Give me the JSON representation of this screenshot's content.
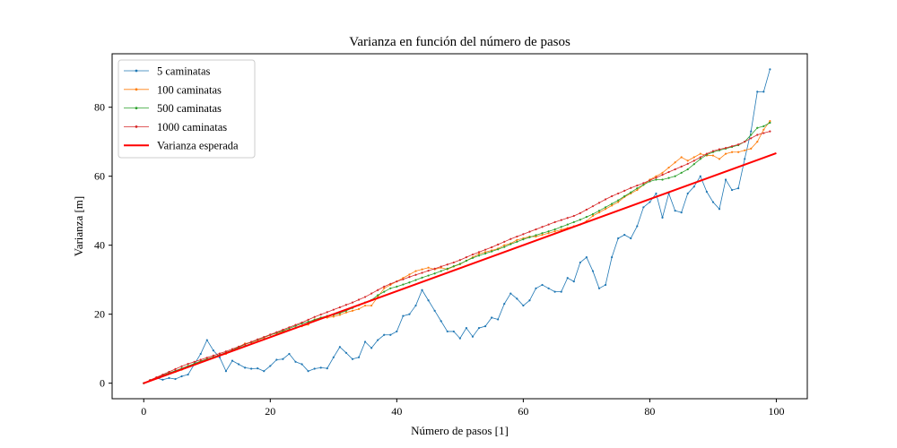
{
  "chart_data": {
    "type": "line",
    "title": "Varianza en función del número de pasos",
    "xlabel": "Número de pasos [1]",
    "ylabel": "Varianza [m]",
    "xlim": [
      -5,
      104.9
    ],
    "ylim": [
      -4.5,
      95.5
    ],
    "xticks": [
      0,
      20,
      40,
      60,
      80,
      100
    ],
    "yticks": [
      0,
      20,
      40,
      60,
      80
    ],
    "grid": false,
    "legend_position": "top-left",
    "series": [
      {
        "name": "5 caminatas",
        "color": "#1f77b4",
        "marker": "dot",
        "x": [
          0,
          1,
          2,
          3,
          4,
          5,
          6,
          7,
          8,
          9,
          10,
          11,
          12,
          13,
          14,
          15,
          16,
          17,
          18,
          19,
          20,
          21,
          22,
          23,
          24,
          25,
          26,
          27,
          28,
          29,
          30,
          31,
          32,
          33,
          34,
          35,
          36,
          37,
          38,
          39,
          40,
          41,
          42,
          43,
          44,
          45,
          46,
          47,
          48,
          49,
          50,
          51,
          52,
          53,
          54,
          55,
          56,
          57,
          58,
          59,
          60,
          61,
          62,
          63,
          64,
          65,
          66,
          67,
          68,
          69,
          70,
          71,
          72,
          73,
          74,
          75,
          76,
          77,
          78,
          79,
          80,
          81,
          82,
          83,
          84,
          85,
          86,
          87,
          88,
          89,
          90,
          91,
          92,
          93,
          94,
          95,
          96,
          97,
          98,
          99
        ],
        "values": [
          0,
          0.8,
          1.5,
          1.0,
          1.5,
          1.2,
          2.0,
          2.5,
          5.5,
          8.5,
          12.5,
          9.5,
          7.5,
          3.5,
          6.5,
          5.5,
          4.5,
          4.2,
          4.3,
          3.5,
          5.0,
          6.8,
          7.0,
          8.5,
          6.2,
          5.5,
          3.5,
          4.2,
          4.5,
          4.3,
          7.5,
          10.5,
          8.8,
          7.0,
          7.5,
          12.0,
          10.2,
          12.5,
          14.0,
          14.0,
          15.0,
          19.5,
          20.0,
          22.5,
          27.0,
          24.0,
          21.0,
          18.0,
          15.0,
          15.0,
          13.0,
          16.0,
          13.5,
          16.0,
          16.5,
          19.0,
          18.5,
          23.0,
          26.0,
          24.5,
          22.5,
          24.0,
          27.5,
          28.5,
          27.5,
          26.5,
          26.5,
          30.5,
          29.5,
          35.0,
          36.5,
          32.5,
          27.5,
          28.5,
          36.5,
          42.0,
          43.0,
          42.0,
          45.5,
          51.0,
          52.5,
          55.0,
          48.0,
          55.0,
          50.0,
          49.5,
          55.0,
          57.0,
          60.0,
          55.5,
          52.5,
          50.5,
          59.0,
          56.0,
          56.5,
          65.0,
          73.0,
          84.5,
          84.5,
          91.0
        ]
      },
      {
        "name": "100 caminatas",
        "color": "#ff7f0e",
        "marker": "dot",
        "x": [
          0,
          1,
          2,
          3,
          4,
          5,
          6,
          7,
          8,
          9,
          10,
          11,
          12,
          13,
          14,
          15,
          16,
          17,
          18,
          19,
          20,
          21,
          22,
          23,
          24,
          25,
          26,
          27,
          28,
          29,
          30,
          31,
          32,
          33,
          34,
          35,
          36,
          37,
          38,
          39,
          40,
          41,
          42,
          43,
          44,
          45,
          46,
          47,
          48,
          49,
          50,
          51,
          52,
          53,
          54,
          55,
          56,
          57,
          58,
          59,
          60,
          61,
          62,
          63,
          64,
          65,
          66,
          67,
          68,
          69,
          70,
          71,
          72,
          73,
          74,
          75,
          76,
          77,
          78,
          79,
          80,
          81,
          82,
          83,
          84,
          85,
          86,
          87,
          88,
          89,
          90,
          91,
          92,
          93,
          94,
          95,
          96,
          97,
          98,
          99
        ],
        "values": [
          0,
          0.8,
          1.5,
          2.2,
          2.8,
          3.3,
          3.9,
          4.8,
          5.5,
          6.3,
          7.0,
          7.4,
          8.0,
          8.5,
          9.5,
          10.5,
          11.5,
          11.8,
          12.5,
          13.2,
          14.0,
          14.5,
          15.0,
          15.5,
          16.0,
          16.5,
          17.0,
          18.5,
          19.0,
          19.0,
          19.3,
          19.8,
          20.5,
          21.0,
          21.5,
          22.5,
          22.5,
          25.0,
          27.5,
          28.5,
          29.5,
          30.5,
          31.5,
          32.5,
          33.0,
          33.5,
          33.0,
          33.5,
          33.0,
          33.8,
          34.5,
          35.5,
          36.5,
          37.5,
          38.0,
          38.5,
          39.0,
          40.0,
          40.5,
          41.5,
          42.0,
          42.5,
          42.5,
          43.0,
          43.5,
          44.0,
          44.5,
          45.0,
          45.5,
          46.0,
          47.0,
          48.5,
          49.5,
          50.5,
          51.5,
          52.5,
          54.0,
          55.0,
          56.0,
          57.5,
          59.0,
          60.0,
          61.0,
          62.5,
          64.0,
          65.5,
          64.5,
          65.5,
          66.5,
          66.0,
          66.0,
          65.0,
          66.5,
          67.0,
          67.0,
          67.5,
          68.0,
          70.0,
          73.5,
          76.0
        ]
      },
      {
        "name": "500 caminatas",
        "color": "#2ca02c",
        "marker": "dot",
        "x": [
          0,
          1,
          2,
          3,
          4,
          5,
          6,
          7,
          8,
          9,
          10,
          11,
          12,
          13,
          14,
          15,
          16,
          17,
          18,
          19,
          20,
          21,
          22,
          23,
          24,
          25,
          26,
          27,
          28,
          29,
          30,
          31,
          32,
          33,
          34,
          35,
          36,
          37,
          38,
          39,
          40,
          41,
          42,
          43,
          44,
          45,
          46,
          47,
          48,
          49,
          50,
          51,
          52,
          53,
          54,
          55,
          56,
          57,
          58,
          59,
          60,
          61,
          62,
          63,
          64,
          65,
          66,
          67,
          68,
          69,
          70,
          71,
          72,
          73,
          74,
          75,
          76,
          77,
          78,
          79,
          80,
          81,
          82,
          83,
          84,
          85,
          86,
          87,
          88,
          89,
          90,
          91,
          92,
          93,
          94,
          95,
          96,
          97,
          98,
          99
        ],
        "values": [
          0,
          0.9,
          1.6,
          2.3,
          3.0,
          3.6,
          4.3,
          5.0,
          5.7,
          6.4,
          7.0,
          7.6,
          8.2,
          8.9,
          9.6,
          10.4,
          11.2,
          11.9,
          12.6,
          13.3,
          14.0,
          14.6,
          15.2,
          15.9,
          16.6,
          17.3,
          17.8,
          18.4,
          19.0,
          19.5,
          19.8,
          20.3,
          21.0,
          21.8,
          22.6,
          23.4,
          24.1,
          25.5,
          26.5,
          27.5,
          28.0,
          28.6,
          29.2,
          29.9,
          30.6,
          31.2,
          31.8,
          32.5,
          33.2,
          33.9,
          34.6,
          35.5,
          36.3,
          37.0,
          37.6,
          38.2,
          38.8,
          39.5,
          40.3,
          41.0,
          41.7,
          42.3,
          42.9,
          43.5,
          44.0,
          44.6,
          45.3,
          46.0,
          46.7,
          47.4,
          48.2,
          49.0,
          50.0,
          51.0,
          52.0,
          53.0,
          54.2,
          55.3,
          56.5,
          57.5,
          58.5,
          59.0,
          59.0,
          59.5,
          60.0,
          61.0,
          62.0,
          63.5,
          65.0,
          66.2,
          67.0,
          67.5,
          68.0,
          68.5,
          69.0,
          70.0,
          72.0,
          74.0,
          74.5,
          75.5
        ]
      },
      {
        "name": "1000 caminatas",
        "color": "#d62728",
        "marker": "dot",
        "x": [
          0,
          1,
          2,
          3,
          4,
          5,
          6,
          7,
          8,
          9,
          10,
          11,
          12,
          13,
          14,
          15,
          16,
          17,
          18,
          19,
          20,
          21,
          22,
          23,
          24,
          25,
          26,
          27,
          28,
          29,
          30,
          31,
          32,
          33,
          34,
          35,
          36,
          37,
          38,
          39,
          40,
          41,
          42,
          43,
          44,
          45,
          46,
          47,
          48,
          49,
          50,
          51,
          52,
          53,
          54,
          55,
          56,
          57,
          58,
          59,
          60,
          61,
          62,
          63,
          64,
          65,
          66,
          67,
          68,
          69,
          70,
          71,
          72,
          73,
          74,
          75,
          76,
          77,
          78,
          79,
          80,
          81,
          82,
          83,
          84,
          85,
          86,
          87,
          88,
          89,
          90,
          91,
          92,
          93,
          94,
          95,
          96,
          97,
          98,
          99
        ],
        "values": [
          0,
          0.9,
          1.7,
          2.5,
          3.3,
          4.1,
          4.9,
          5.6,
          6.2,
          6.8,
          7.4,
          8.0,
          8.6,
          9.2,
          9.9,
          10.6,
          11.3,
          12.0,
          12.7,
          13.4,
          14.1,
          14.8,
          15.5,
          16.2,
          16.9,
          17.6,
          18.4,
          19.2,
          19.9,
          20.6,
          21.3,
          22.0,
          22.7,
          23.4,
          24.2,
          25.0,
          26.0,
          27.0,
          28.0,
          28.8,
          29.5,
          30.1,
          30.8,
          31.4,
          32.0,
          32.6,
          33.2,
          33.8,
          34.4,
          35.0,
          35.7,
          36.5,
          37.3,
          38.0,
          38.7,
          39.4,
          40.2,
          41.0,
          41.8,
          42.5,
          43.2,
          43.9,
          44.6,
          45.3,
          46.0,
          46.7,
          47.3,
          47.9,
          48.5,
          49.3,
          50.3,
          51.3,
          52.3,
          53.3,
          54.2,
          55.0,
          55.8,
          56.6,
          57.3,
          58.0,
          58.8,
          59.6,
          60.4,
          61.2,
          62.0,
          62.8,
          63.6,
          64.5,
          65.5,
          66.5,
          67.3,
          67.8,
          68.2,
          68.7,
          69.2,
          70.0,
          71.0,
          72.0,
          72.5,
          73.0
        ]
      },
      {
        "name": "Varianza esperada",
        "color": "#ff0000",
        "marker": "none",
        "x": [
          0,
          100
        ],
        "values": [
          0,
          66.7
        ]
      }
    ]
  }
}
